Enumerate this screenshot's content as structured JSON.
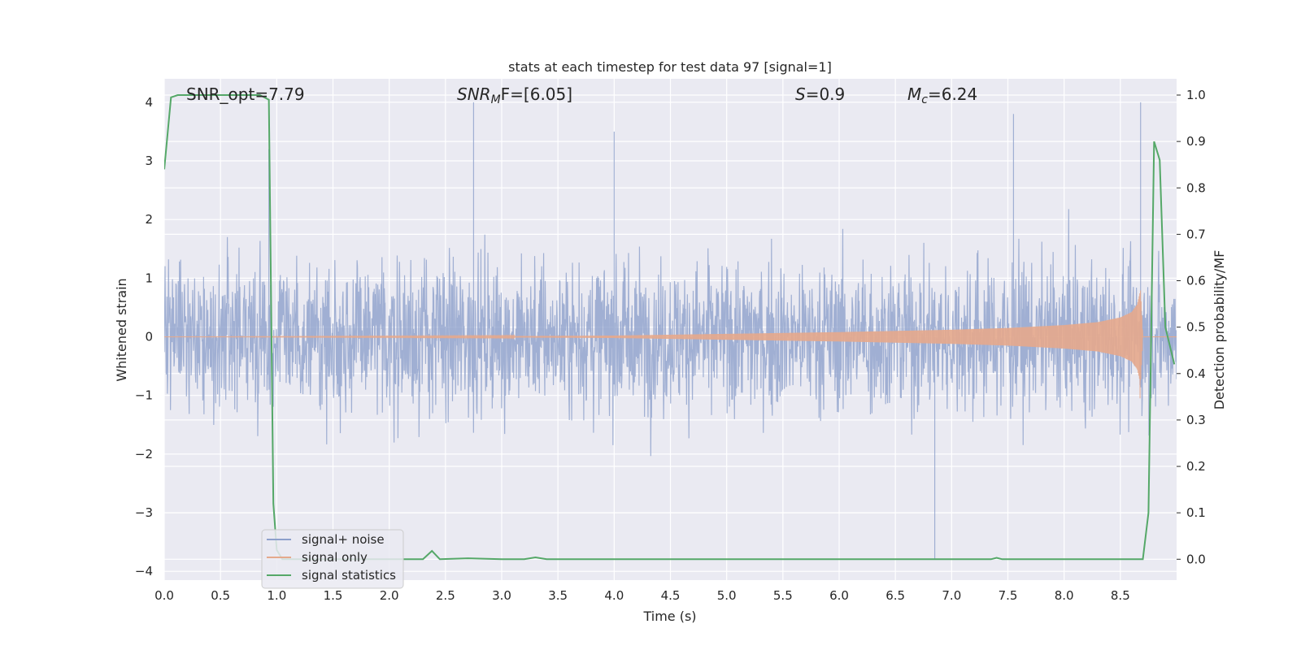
{
  "chart_data": {
    "type": "line",
    "title": "stats at each timestep for test data 97 [signal=1]",
    "xlabel": "Time (s)",
    "ylabel_left": "Whitened strain",
    "ylabel_right": "Detection probability/MF",
    "xlim": [
      0.0,
      9.0
    ],
    "ylim_left": [
      -4.15,
      4.4
    ],
    "ylim_right": [
      -0.045,
      1.035
    ],
    "x_ticks": [
      "0.0",
      "0.5",
      "1.0",
      "1.5",
      "2.0",
      "2.5",
      "3.0",
      "3.5",
      "4.0",
      "4.5",
      "5.0",
      "5.5",
      "6.0",
      "6.5",
      "7.0",
      "7.5",
      "8.0",
      "8.5"
    ],
    "y_ticks_left": [
      "4",
      "3",
      "2",
      "1",
      "0",
      "−1",
      "−2",
      "−3",
      "−4"
    ],
    "y_ticks_right": [
      "1.0",
      "0.9",
      "0.8",
      "0.7",
      "0.6",
      "0.5",
      "0.4",
      "0.3",
      "0.2",
      "0.1",
      "0.0"
    ],
    "grid": true,
    "legend_position": "lower-left",
    "annotations": {
      "snr_opt": "SNR_opt=7.79",
      "snr_mf_main": "SNR",
      "snr_mf_sub": "M",
      "snr_mf_rest": "F=[6.05]",
      "s_main": "S",
      "s_rest": "=0.9",
      "mc_main": "M",
      "mc_sub": "c",
      "mc_rest": "=6.24"
    },
    "series": [
      {
        "name": "signal+ noise",
        "axis": "left",
        "color": "#8da0cb",
        "description_values": "noisy strain, approx range -3.8 to 4.0",
        "peaks_x": [
          0.93,
          2.75,
          4.0,
          6.85,
          7.55,
          8.68
        ],
        "peaks_y": [
          3.2,
          4.0,
          3.5,
          -3.8,
          3.8,
          4.0
        ]
      },
      {
        "name": "signal only",
        "axis": "left",
        "color": "#e5a98c",
        "envelope_x": [
          0.0,
          3.0,
          4.0,
          5.0,
          6.0,
          7.0,
          7.5,
          8.0,
          8.3,
          8.5,
          8.6,
          8.65,
          8.68,
          8.7,
          9.0
        ],
        "envelope_y": [
          0.0,
          0.01,
          0.02,
          0.05,
          0.08,
          0.12,
          0.15,
          0.2,
          0.25,
          0.33,
          0.42,
          0.55,
          0.8,
          0.0,
          0.0
        ]
      },
      {
        "name": "signal statistics",
        "axis": "right",
        "color": "#55a868",
        "x": [
          0.0,
          0.06,
          0.12,
          0.5,
          0.85,
          0.93,
          0.97,
          1.0,
          1.05,
          1.5,
          2.0,
          2.3,
          2.38,
          2.45,
          2.7,
          3.0,
          3.2,
          3.3,
          3.4,
          4.0,
          5.0,
          6.0,
          7.0,
          7.35,
          7.4,
          7.45,
          8.0,
          8.5,
          8.7,
          8.75,
          8.8,
          8.85,
          8.9,
          8.98
        ],
        "y": [
          0.84,
          0.995,
          1.0,
          1.0,
          1.0,
          0.99,
          0.12,
          0.02,
          0.0,
          0.0,
          0.0,
          0.0,
          0.018,
          0.0,
          0.002,
          0.0,
          0.0,
          0.004,
          0.0,
          0.0,
          0.0,
          0.0,
          0.0,
          0.0,
          0.003,
          0.0,
          0.0,
          0.0,
          0.0,
          0.1,
          0.9,
          0.86,
          0.5,
          0.42
        ]
      }
    ]
  }
}
